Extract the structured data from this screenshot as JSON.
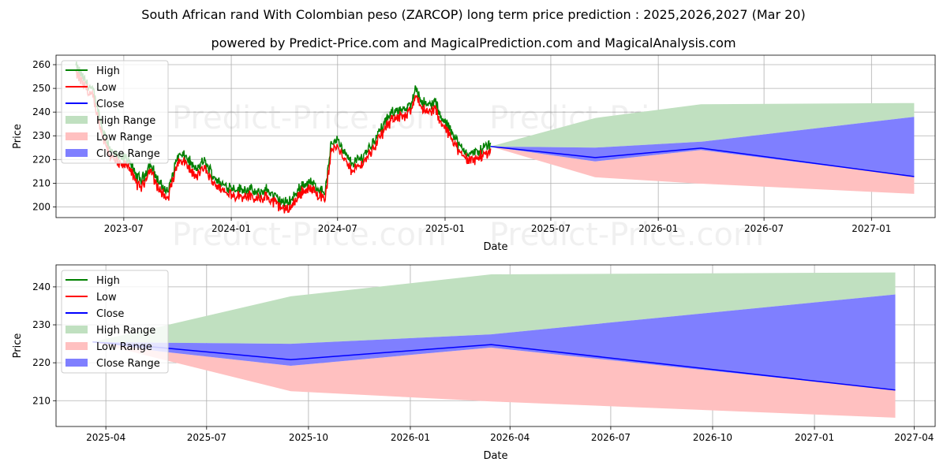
{
  "titles": {
    "main": "South African rand With Colombian peso (ZARCOP) long term price prediction : 2025,2026,2027 (Mar 20)",
    "sub": "powered by Predict-Price.com and MagicalPrediction.com and MagicalAnalysis.com"
  },
  "watermark": "Predict-Price.com",
  "colors": {
    "high": "#008000",
    "low": "#ff0000",
    "close": "#0000ff",
    "high_range": "#c0e0c0",
    "low_range": "#ffc0c0",
    "close_range": "#7f7fff"
  },
  "chart_data": [
    {
      "type": "line",
      "panel": "top",
      "xlabel": "Date",
      "ylabel": "Price",
      "ylim": [
        195.5,
        264
      ],
      "xlim": [
        "2023-03-07",
        "2027-04-20"
      ],
      "yticks": [
        200,
        210,
        220,
        230,
        240,
        250,
        260
      ],
      "ytick_labels": [
        "200",
        "210",
        "220",
        "230",
        "240",
        "250",
        "260"
      ],
      "xticks": [
        "2023-07-01",
        "2024-01-01",
        "2024-07-01",
        "2025-01-01",
        "2025-07-01",
        "2026-01-01",
        "2026-07-01",
        "2027-01-01"
      ],
      "xtick_labels": [
        "2023-07",
        "2024-01",
        "2024-07",
        "2025-01",
        "2025-07",
        "2026-01",
        "2026-07",
        "2027-01"
      ],
      "grid": true,
      "legend_position": "top-left",
      "legend": [
        "High",
        "Low",
        "Close",
        "High Range",
        "Low Range",
        "Close Range"
      ],
      "history_anchors": [
        [
          "2023-04-10",
          258
        ],
        [
          "2023-04-25",
          252
        ],
        [
          "2023-05-10",
          247
        ],
        [
          "2023-05-25",
          232
        ],
        [
          "2023-06-10",
          222
        ],
        [
          "2023-06-25",
          219
        ],
        [
          "2023-07-10",
          219
        ],
        [
          "2023-07-20",
          212
        ],
        [
          "2023-08-01",
          210
        ],
        [
          "2023-08-15",
          217
        ],
        [
          "2023-09-01",
          208
        ],
        [
          "2023-09-15",
          205
        ],
        [
          "2023-10-01",
          220
        ],
        [
          "2023-10-15",
          220
        ],
        [
          "2023-11-01",
          214
        ],
        [
          "2023-11-15",
          218
        ],
        [
          "2023-12-01",
          212
        ],
        [
          "2023-12-15",
          208
        ],
        [
          "2024-01-01",
          207
        ],
        [
          "2024-01-15",
          206
        ],
        [
          "2024-02-01",
          206
        ],
        [
          "2024-02-15",
          204
        ],
        [
          "2024-03-01",
          206
        ],
        [
          "2024-03-15",
          203
        ],
        [
          "2024-04-01",
          200
        ],
        [
          "2024-04-15",
          202
        ],
        [
          "2024-05-01",
          208
        ],
        [
          "2024-05-15",
          209
        ],
        [
          "2024-06-01",
          206
        ],
        [
          "2024-06-10",
          205
        ],
        [
          "2024-06-20",
          225
        ],
        [
          "2024-07-01",
          228
        ],
        [
          "2024-07-10",
          222
        ],
        [
          "2024-07-25",
          217
        ],
        [
          "2024-08-10",
          219
        ],
        [
          "2024-08-25",
          224
        ],
        [
          "2024-09-10",
          230
        ],
        [
          "2024-09-25",
          236
        ],
        [
          "2024-10-10",
          240
        ],
        [
          "2024-10-25",
          239
        ],
        [
          "2024-11-05",
          242
        ],
        [
          "2024-11-12",
          250
        ],
        [
          "2024-11-20",
          244
        ],
        [
          "2024-12-01",
          241
        ],
        [
          "2024-12-15",
          243
        ],
        [
          "2024-12-25",
          236
        ],
        [
          "2025-01-05",
          233
        ],
        [
          "2025-01-15",
          230
        ],
        [
          "2025-01-25",
          224
        ],
        [
          "2025-02-05",
          222
        ],
        [
          "2025-02-15",
          221
        ],
        [
          "2025-02-28",
          222
        ],
        [
          "2025-03-10",
          224
        ],
        [
          "2025-03-20",
          225
        ]
      ],
      "forecast": {
        "dates": [
          "2025-03-20",
          "2025-09-15",
          "2026-03-15",
          "2027-03-15"
        ],
        "close": [
          225.5,
          220.8,
          224.8,
          212.8
        ],
        "close_range_high": [
          225.5,
          225.0,
          227.5,
          238.0
        ],
        "close_range_low": [
          225.5,
          219.2,
          224.0,
          212.8
        ],
        "high_range_high": [
          225.5,
          237.5,
          243.3,
          243.8
        ],
        "low_range_low": [
          225.5,
          212.5,
          209.8,
          205.5
        ]
      }
    },
    {
      "type": "line",
      "panel": "bottom",
      "xlabel": "Date",
      "ylabel": "Price",
      "ylim": [
        203.2,
        245.8
      ],
      "xlim": [
        "2025-02-15",
        "2027-04-20"
      ],
      "yticks": [
        210,
        220,
        230,
        240
      ],
      "ytick_labels": [
        "210",
        "220",
        "230",
        "240"
      ],
      "xticks": [
        "2025-04-01",
        "2025-07-01",
        "2025-10-01",
        "2026-01-01",
        "2026-04-01",
        "2026-07-01",
        "2026-10-01",
        "2027-01-01",
        "2027-04-01"
      ],
      "xtick_labels": [
        "2025-04",
        "2025-07",
        "2025-10",
        "2026-01",
        "2026-04",
        "2026-07",
        "2026-10",
        "2027-01",
        "2027-04"
      ],
      "grid": true,
      "legend_position": "top-left",
      "legend": [
        "High",
        "Low",
        "Close",
        "High Range",
        "Low Range",
        "Close Range"
      ],
      "forecast": {
        "dates": [
          "2025-03-20",
          "2025-05-20",
          "2025-09-15",
          "2026-03-15",
          "2027-03-15"
        ],
        "close": [
          225.5,
          224.0,
          220.8,
          224.8,
          212.8
        ],
        "close_range_high": [
          225.5,
          225.3,
          225.0,
          227.5,
          238.0
        ],
        "close_range_low": [
          225.5,
          223.0,
          219.2,
          224.0,
          212.8
        ],
        "high_range_high": [
          225.5,
          229.5,
          237.5,
          243.3,
          243.8
        ],
        "low_range_low": [
          225.5,
          221.0,
          212.5,
          209.8,
          205.5
        ]
      }
    }
  ]
}
